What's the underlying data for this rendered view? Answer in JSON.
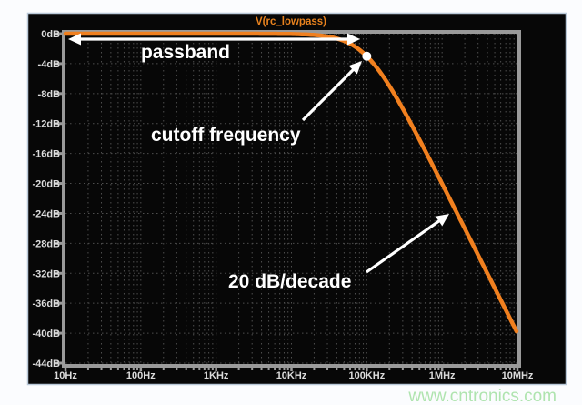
{
  "page": {
    "background": "#fbfcfe",
    "watermark": {
      "text": "www.cntronics.com",
      "color": "#afe4af"
    }
  },
  "window": {
    "background": "#070707",
    "border_color": "#b9c8d8"
  },
  "chart_data": {
    "type": "line",
    "title": "V(rc_lowpass)",
    "title_color": "#e8821e",
    "x_axis": {
      "scale": "log",
      "unit": "Hz",
      "min_hz": 10,
      "max_hz": 10000000,
      "tick_labels": [
        "10Hz",
        "100Hz",
        "1KHz",
        "10KHz",
        "100KHz",
        "1MHz",
        "10MHz"
      ]
    },
    "y_axis": {
      "unit": "dB",
      "max": 0,
      "min": -44,
      "step": 4,
      "tick_labels": [
        "0dB",
        "-4dB",
        "-8dB",
        "-12dB",
        "-16dB",
        "-20dB",
        "-24dB",
        "-28dB",
        "-32dB",
        "-36dB",
        "-40dB",
        "-44dB"
      ]
    },
    "grid": true,
    "series": [
      {
        "name": "V(rc_lowpass)",
        "color": "#f1801f",
        "model": "first_order_lowpass",
        "cutoff_hz": 100000,
        "rolloff": "-20 dB/decade",
        "points": [
          {
            "f_hz": 10,
            "db": 0.0
          },
          {
            "f_hz": 100,
            "db": 0.0
          },
          {
            "f_hz": 1000,
            "db": 0.0
          },
          {
            "f_hz": 10000,
            "db": -0.04
          },
          {
            "f_hz": 100000,
            "db": -3.01
          },
          {
            "f_hz": 1000000,
            "db": -20.04
          },
          {
            "f_hz": 10000000,
            "db": -40.0
          }
        ]
      }
    ],
    "marker": {
      "f_hz": 100000,
      "db": -3.01,
      "color": "#ffffff"
    },
    "annotations": [
      {
        "id": "passband",
        "text": "passband",
        "type": "double-arrow-span",
        "from_hz": 10,
        "to_hz": 100000,
        "at_db": 0
      },
      {
        "id": "cutoff",
        "text": "cutoff frequency",
        "type": "arrow",
        "points_to": "cutoff-marker"
      },
      {
        "id": "slope",
        "text": "20 dB/decade",
        "type": "arrow",
        "points_to": "rolloff-slope"
      }
    ],
    "colors": {
      "grid": "#4e4e4e",
      "frame": "#9a9a9a",
      "tick_labels": "#dcdcdc",
      "annotation": "#ffffff"
    }
  }
}
